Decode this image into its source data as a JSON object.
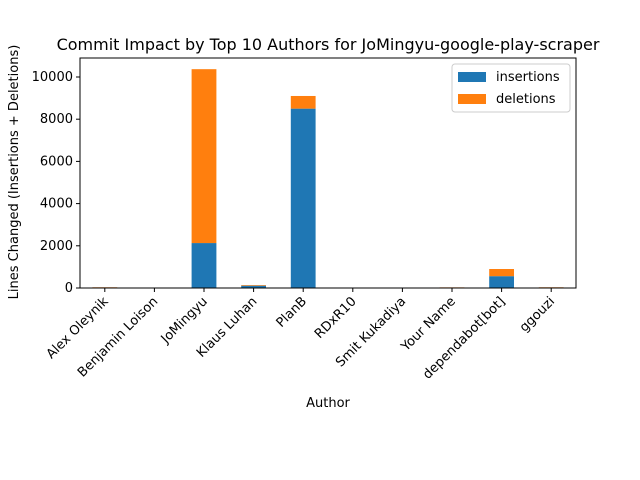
{
  "chart_data": {
    "type": "bar",
    "stacked": true,
    "title": "Commit Impact by Top 10 Authors for JoMingyu-google-play-scraper",
    "xlabel": "Author",
    "ylabel": "Lines Changed (Insertions + Deletions)",
    "ylim": [
      0,
      10900
    ],
    "yticks": [
      0,
      2000,
      4000,
      6000,
      8000,
      10000
    ],
    "ytick_labels": [
      "0",
      "2000",
      "4000",
      "6000",
      "8000",
      "10000"
    ],
    "categories": [
      "Alex Oleynik",
      "Benjamin Loison",
      "JoMingyu",
      "Klaus Luhan",
      "PlanB",
      "RDxR10",
      "Smit Kukadiya",
      "Your Name",
      "dependabot[bot]",
      "ggouzi"
    ],
    "series": [
      {
        "name": "insertions",
        "color": "#1f77b4",
        "values": [
          25,
          3,
          2130,
          110,
          8500,
          3,
          3,
          20,
          560,
          25
        ]
      },
      {
        "name": "deletions",
        "color": "#ff7f0e",
        "values": [
          10,
          2,
          8240,
          30,
          600,
          2,
          2,
          10,
          340,
          10
        ]
      }
    ],
    "legend": {
      "position": "top-right",
      "labels": [
        "insertions",
        "deletions"
      ]
    },
    "grid": false
  }
}
